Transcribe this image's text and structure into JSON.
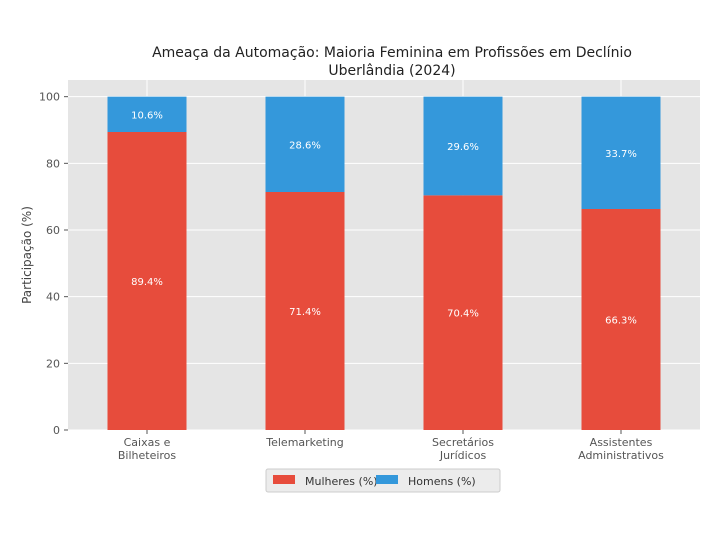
{
  "chart_data": {
    "type": "bar",
    "stacked": true,
    "title": "Ameaça da Automação: Maioria Feminina em Profissões em Declínio",
    "subtitle": "Uberlândia (2024)",
    "xlabel": "",
    "ylabel": "Participação (%)",
    "ylim": [
      0,
      105
    ],
    "yticks": [
      0,
      20,
      40,
      60,
      80,
      100
    ],
    "grid": true,
    "legend_position": "bottom",
    "categories": [
      [
        "Caixas e",
        "Bilheteiros"
      ],
      [
        "Telemarketing"
      ],
      [
        "Secretários",
        "Jurídicos"
      ],
      [
        "Assistentes",
        "Administrativos"
      ]
    ],
    "series": [
      {
        "name": "Mulheres (%)",
        "color": "#e74c3c",
        "values": [
          89.4,
          71.4,
          70.4,
          66.3
        ],
        "labels": [
          "89.4%",
          "71.4%",
          "70.4%",
          "66.3%"
        ]
      },
      {
        "name": "Homens (%)",
        "color": "#3498db",
        "values": [
          10.6,
          28.6,
          29.6,
          33.7
        ],
        "labels": [
          "10.6%",
          "28.6%",
          "29.6%",
          "33.7%"
        ]
      }
    ],
    "background_color": "#e5e5e5"
  }
}
